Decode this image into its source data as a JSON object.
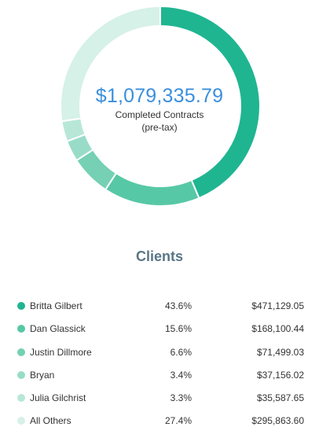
{
  "summary": {
    "total": "$1,079,335.79",
    "label_line1": "Completed Contracts",
    "label_line2": "(pre-tax)"
  },
  "clients_heading": "Clients",
  "clients": [
    {
      "name": "Britta Gilbert",
      "percent": "43.6%",
      "amount": "$471,129.05",
      "share": 43.6,
      "color": "#1fb591"
    },
    {
      "name": "Dan Glassick",
      "percent": "15.6%",
      "amount": "$168,100.44",
      "share": 15.6,
      "color": "#57c8a5"
    },
    {
      "name": "Justin Dillmore",
      "percent": "6.6%",
      "amount": "$71,499.03",
      "share": 6.6,
      "color": "#75d0b4"
    },
    {
      "name": "Bryan",
      "percent": "3.4%",
      "amount": "$37,156.02",
      "share": 3.4,
      "color": "#98dcc7"
    },
    {
      "name": "Julia Gilchrist",
      "percent": "3.3%",
      "amount": "$35,587.65",
      "share": 3.3,
      "color": "#b8e7d8"
    },
    {
      "name": "All Others",
      "percent": "27.4%",
      "amount": "$295,863.60",
      "share": 27.4,
      "color": "#d6f1e7"
    }
  ]
}
